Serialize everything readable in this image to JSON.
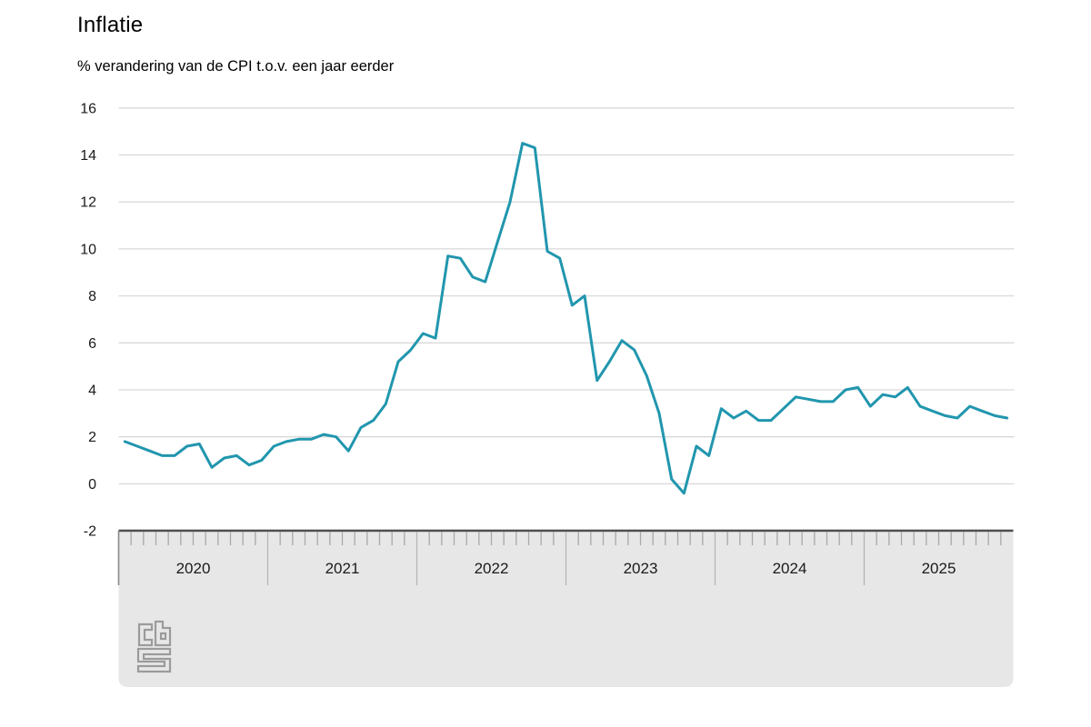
{
  "chart": {
    "title": "Inflatie",
    "subtitle": "% verandering van de CPI t.o.v. een jaar eerder",
    "logo_name": "cbs-logo"
  },
  "chart_data": {
    "type": "line",
    "title": "Inflatie",
    "subtitle": "% verandering van de CPI t.o.v. een jaar eerder",
    "unit": "%",
    "grid": "horizontal",
    "legend": "none",
    "ylim": [
      -2,
      16
    ],
    "yticks": [
      16,
      14,
      12,
      10,
      8,
      6,
      4,
      2,
      0,
      -2
    ],
    "x_years": [
      "2020",
      "2021",
      "2022",
      "2023",
      "2024",
      "2025"
    ],
    "x_frequency": "monthly",
    "x_start": "2020-01",
    "x_end": "2025-12",
    "line_color": "#2196ae",
    "band_color": "#e7e7e7",
    "logo_color": "#9b9b9b",
    "series": [
      {
        "name": "Inflatie (CPI, % t.o.v. een jaar eerder)",
        "values": [
          1.8,
          1.6,
          1.4,
          1.2,
          1.2,
          1.6,
          1.7,
          0.7,
          1.1,
          1.2,
          0.8,
          1.0,
          1.6,
          1.8,
          1.9,
          1.9,
          2.1,
          2.0,
          1.4,
          2.4,
          2.7,
          3.4,
          5.2,
          5.7,
          6.4,
          6.2,
          9.7,
          9.6,
          8.8,
          8.6,
          10.3,
          12.0,
          14.5,
          14.3,
          9.9,
          9.6,
          7.6,
          8.0,
          4.4,
          5.2,
          6.1,
          5.7,
          4.6,
          3.0,
          0.2,
          -0.4,
          1.6,
          1.2,
          3.2,
          2.8,
          3.1,
          2.7,
          2.7,
          3.2,
          3.7,
          3.6,
          3.5,
          3.5,
          4.0,
          4.1,
          3.3,
          3.8,
          3.7,
          4.1,
          3.3,
          3.1,
          2.9,
          2.8,
          3.3,
          3.1,
          2.9,
          2.8
        ]
      }
    ]
  }
}
